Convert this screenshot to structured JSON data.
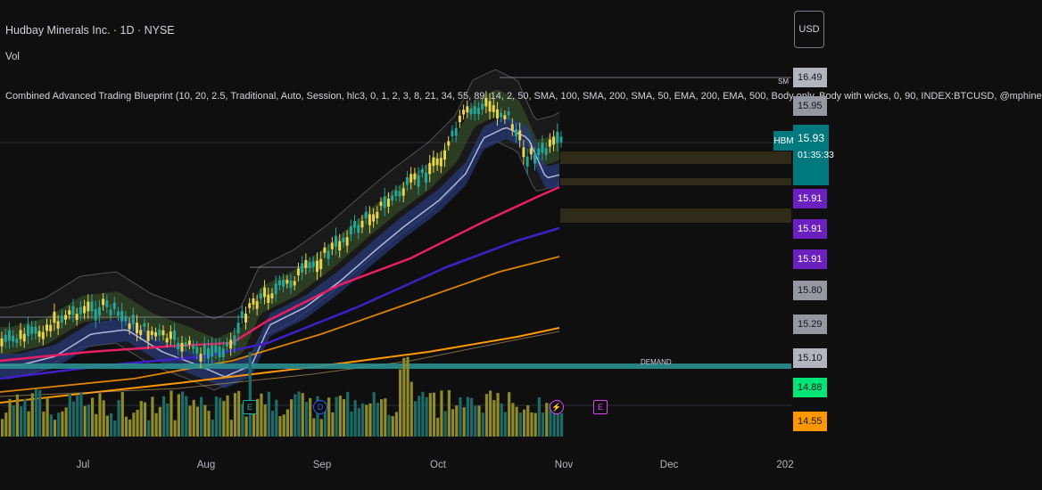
{
  "header": {
    "symbol_title": "Hudbay Minerals Inc. · 1D · NYSE",
    "volume_label": "Vol",
    "indicator_line": "Combined Advanced Trading Blueprint (10, 20, 2.5, Traditional, Auto, Session, hlc3, 0, 1, 2, 3, 8, 21, 34, 55, 89, 14, 2, 50, SMA, 100, SMA, 200, SMA, 50, EMA, 200, EMA, 500, Body only, Body with wicks, 0, 90, INDEX:BTCUSD, @mphine"
  },
  "currency_button": "USD",
  "symbol_tag": "HBM",
  "current_price": {
    "value": "15.93",
    "countdown": "01:35:33",
    "color": "#00797e"
  },
  "price_labels": [
    {
      "value": "16.49",
      "bg": "#b2b5be",
      "fg": "#131722"
    },
    {
      "value": "15.95",
      "bg": "#9598a1",
      "fg": "#131722"
    },
    {
      "value": "15.91",
      "bg": "#6a1fbf",
      "fg": "#ffffff"
    },
    {
      "value": "15.91",
      "bg": "#6a1fbf",
      "fg": "#ffffff"
    },
    {
      "value": "15.91",
      "bg": "#6a1fbf",
      "fg": "#ffffff"
    },
    {
      "value": "15.80",
      "bg": "#9598a1",
      "fg": "#131722"
    },
    {
      "value": "15.29",
      "bg": "#9598a1",
      "fg": "#131722"
    },
    {
      "value": "15.10",
      "bg": "#b2b5be",
      "fg": "#131722"
    },
    {
      "value": "14.88",
      "bg": "#00e676",
      "fg": "#131722"
    },
    {
      "value": "14.55",
      "bg": "#ff9800",
      "fg": "#131722"
    }
  ],
  "time_axis": [
    "Jul",
    "Aug",
    "Sep",
    "Oct",
    "Nov",
    "Dec",
    "202"
  ],
  "annotations": {
    "demand": "DEMAND",
    "label_top": "SM"
  },
  "events": [
    {
      "symbol": "E",
      "kind": "earnings",
      "color": "#26a69a"
    },
    {
      "symbol": "D",
      "kind": "dividend",
      "color": "#2962ff"
    },
    {
      "symbol": "⚡",
      "kind": "split",
      "color": "#e040fb"
    },
    {
      "symbol": "E",
      "kind": "earnings-upcoming",
      "color": "#e040fb"
    }
  ],
  "colors": {
    "background": "#0f0f0f",
    "candle_up": "#26a69a",
    "candle_wick_yellow": "#e8d44d",
    "ema_fast_band": "#3d5a2e",
    "ema_slow_band": "#283a7a",
    "sma50": "#e91e63",
    "sma100": "#3f20c8",
    "sma200": "#ff9800",
    "demand_line": "#2a8f8f"
  }
}
